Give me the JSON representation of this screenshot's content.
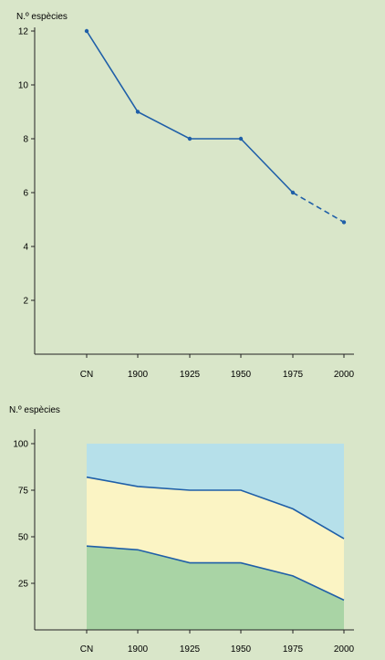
{
  "chart_data": [
    {
      "type": "line",
      "ylabel": "N.º espècies",
      "categories": [
        "CN",
        "1900",
        "1925",
        "1950",
        "1975",
        "2000"
      ],
      "ylim": [
        0,
        12
      ],
      "yticks": [
        "2",
        "4",
        "6",
        "8",
        "10",
        "12"
      ],
      "series": [
        {
          "values": [
            12,
            9,
            8,
            8,
            6,
            4.9
          ],
          "color": "#1f5fa8",
          "dashed_last_segment": true
        }
      ]
    },
    {
      "type": "area",
      "ylabel": "N.º espècies",
      "categories": [
        "CN",
        "1900",
        "1925",
        "1950",
        "1975",
        "2000"
      ],
      "ylim": [
        0,
        100
      ],
      "yticks": [
        "25",
        "50",
        "75",
        "100"
      ],
      "series": [
        {
          "values": [
            45,
            43,
            36,
            36,
            29,
            16
          ],
          "color": "#a9d4a5"
        },
        {
          "values": [
            82,
            77,
            75,
            75,
            65,
            49
          ],
          "color": "#fbf4c4"
        },
        {
          "values": [
            100,
            100,
            100,
            100,
            100,
            100
          ],
          "color": "#b6e0ea"
        }
      ],
      "line_color": "#1f5fa8"
    }
  ]
}
